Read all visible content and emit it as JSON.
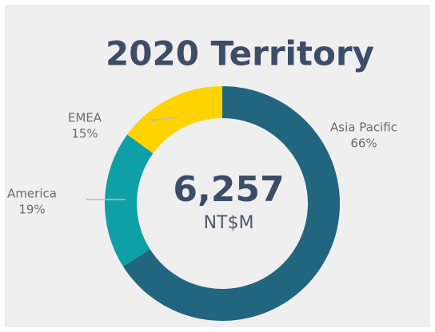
{
  "chart_data": {
    "type": "pie",
    "donut": true,
    "title": "2020 Territory",
    "total": 6257,
    "total_label": "6,257",
    "unit": "NT$M",
    "categories": [
      "Asia Pacific",
      "America",
      "EMEA"
    ],
    "values": [
      66,
      19,
      15
    ],
    "value_labels": [
      "66%",
      "19%",
      "15%"
    ],
    "colors": [
      "#22657f",
      "#0e9fa7",
      "#ffd200"
    ]
  }
}
